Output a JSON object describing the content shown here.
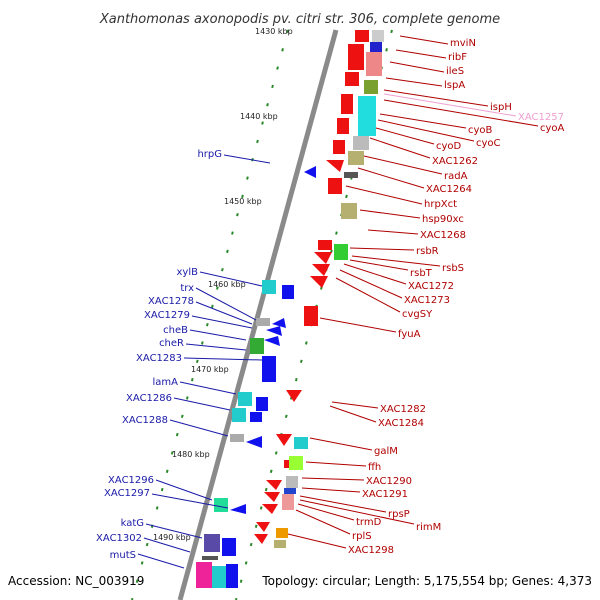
{
  "title": "Xanthomonas axonopodis pv. citri str. 306, complete genome",
  "accession": "Accession: NC_003919",
  "topology": "Topology: circular; Length: 5,175,554 bp; Genes: 4,373",
  "kbp_ticks": [
    "1430 kbp",
    "1440 kbp",
    "1450 kbp",
    "1460 kbp",
    "1470 kbp",
    "1480 kbp",
    "1490 kbp"
  ],
  "genes_left": [
    "hrpG",
    "xylB",
    "trx",
    "XAC1278",
    "XAC1279",
    "cheB",
    "cheR",
    "XAC1283",
    "lamA",
    "XAC1286",
    "XAC1288",
    "XAC1296",
    "XAC1297",
    "katG",
    "XAC1302",
    "mutS"
  ],
  "genes_right": [
    "mviN",
    "ribF",
    "ileS",
    "lspA",
    "ispH",
    "XAC1257",
    "cyoA",
    "cyoB",
    "cyoC",
    "cyoD",
    "XAC1262",
    "radA",
    "XAC1264",
    "hrpXct",
    "hsp90xc",
    "XAC1268",
    "rsbR",
    "rsbS",
    "rsbT",
    "XAC1272",
    "XAC1273",
    "cvgSY",
    "fyuA",
    "XAC1282",
    "XAC1284",
    "galM",
    "ffh",
    "XAC1290",
    "XAC1291",
    "rpsP",
    "rimM",
    "trmD",
    "rplS",
    "XAC1298"
  ],
  "colors": {
    "forward_strand": "#ee1111",
    "reverse_strand": "#1111ee",
    "axis": "#888888",
    "dots": "#228822"
  }
}
